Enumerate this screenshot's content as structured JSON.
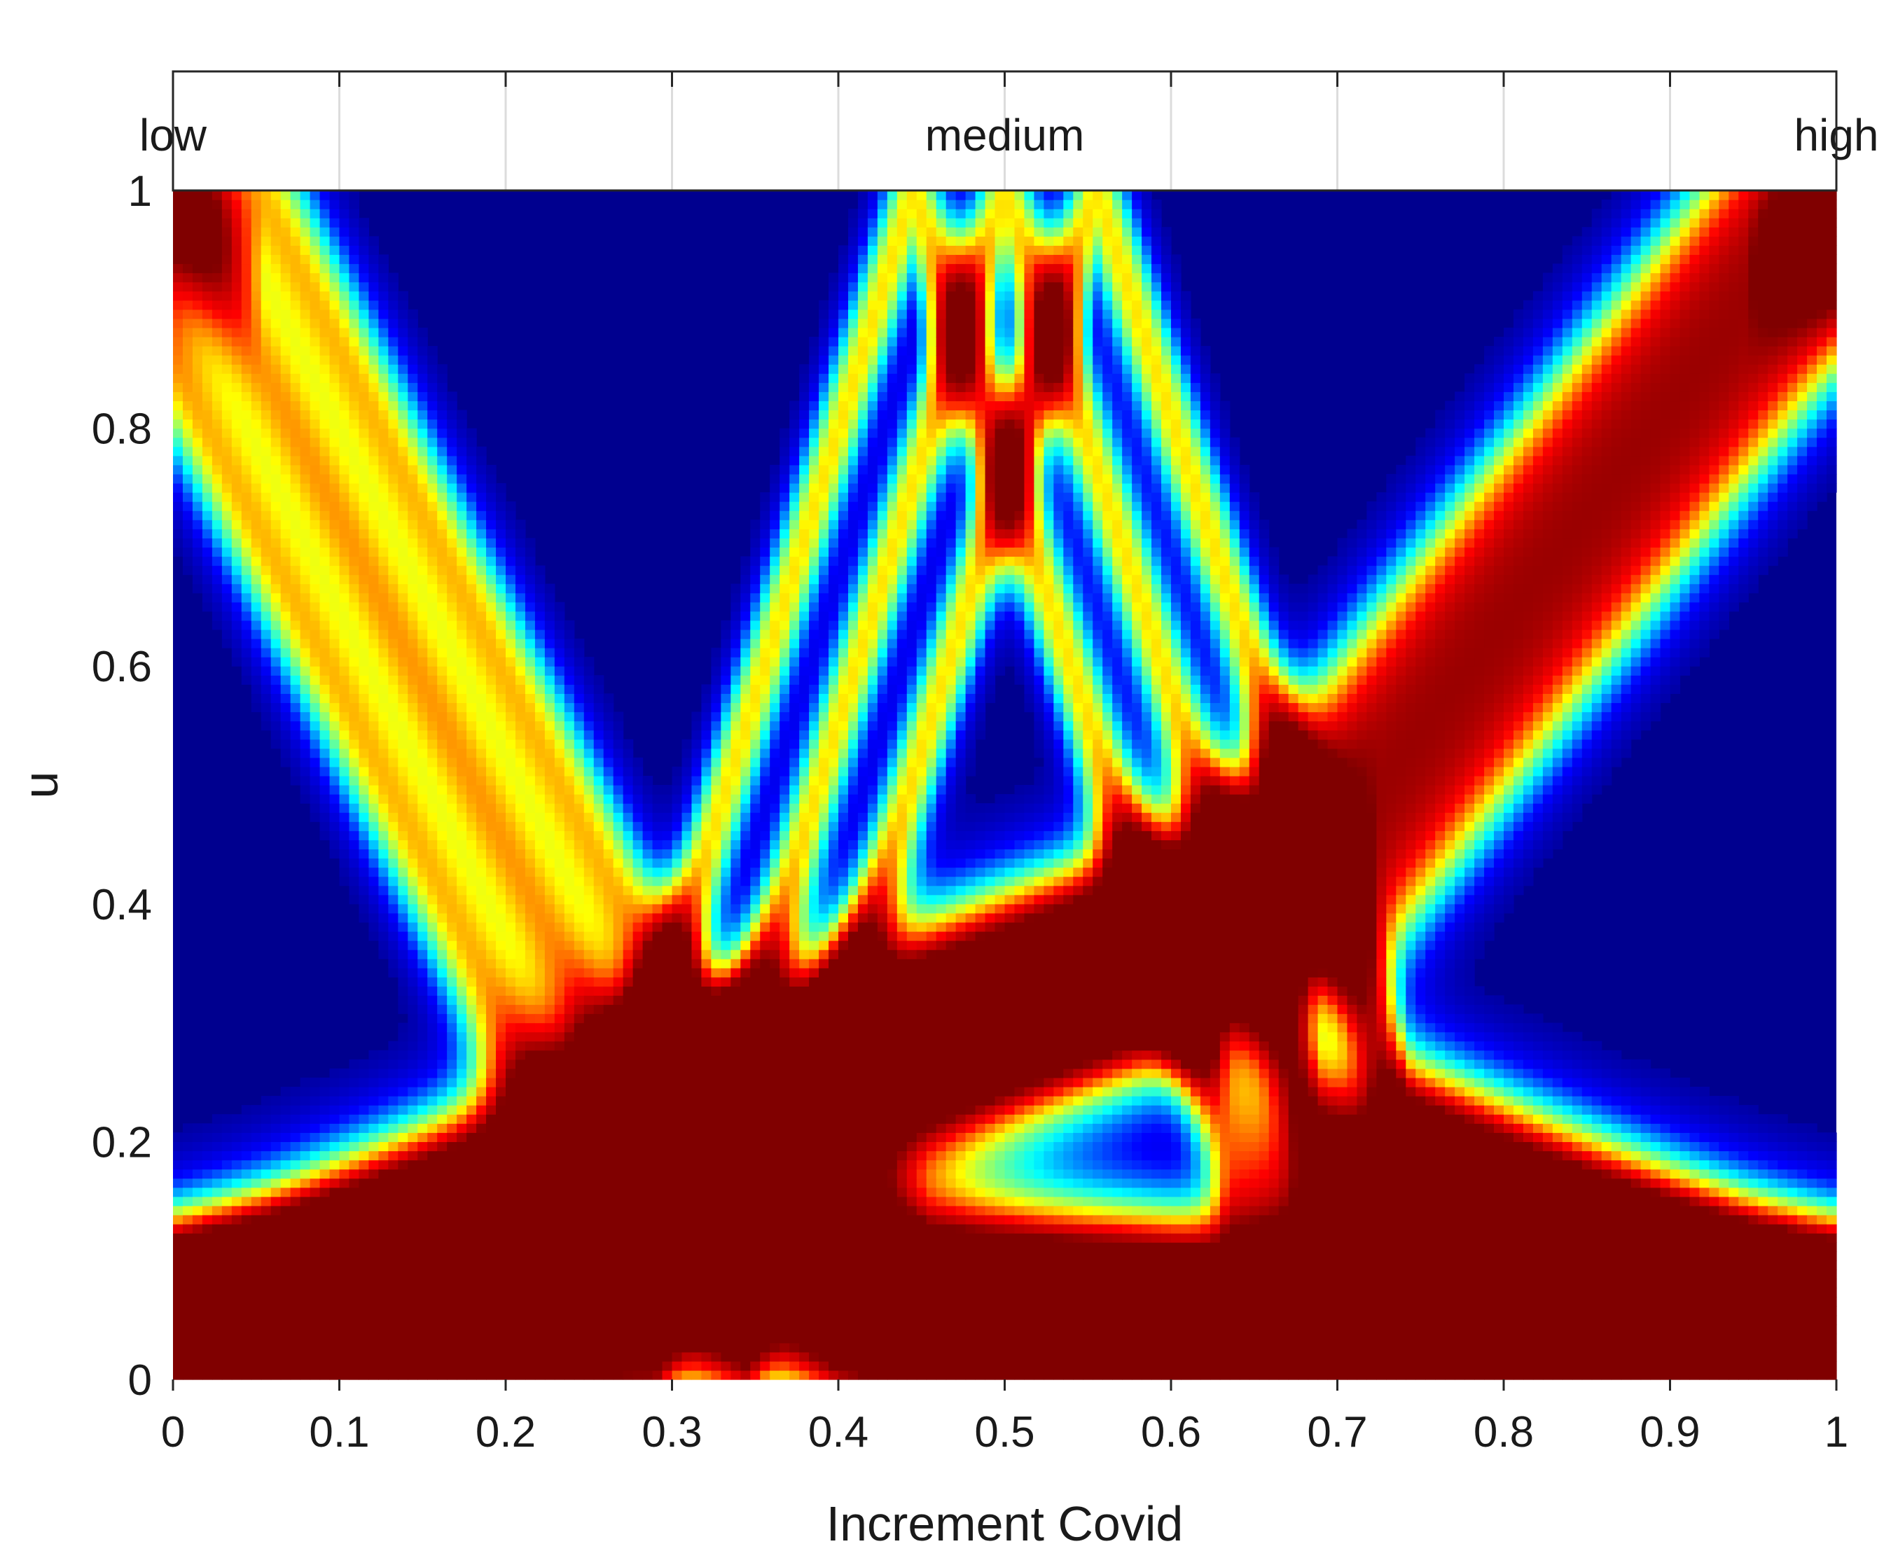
{
  "chart_data": {
    "type": "heatmap",
    "title": "",
    "xlabel": "Increment Covid",
    "ylabel": "u",
    "xlim": [
      0,
      1
    ],
    "ylim": [
      0,
      1
    ],
    "x_ticks": [
      0,
      0.1,
      0.2,
      0.3,
      0.4,
      0.5,
      0.6,
      0.7,
      0.8,
      0.9,
      1
    ],
    "x_tick_labels": [
      "0",
      "0.1",
      "0.2",
      "0.3",
      "0.4",
      "0.5",
      "0.6",
      "0.7",
      "0.8",
      "0.9",
      "1"
    ],
    "y_ticks": [
      0,
      0.2,
      0.4,
      0.6,
      0.8,
      1
    ],
    "y_tick_labels": [
      "0",
      "0.2",
      "0.4",
      "0.6",
      "0.8",
      "1"
    ],
    "top_labels": [
      {
        "x": 0,
        "text": "low"
      },
      {
        "x": 0.5,
        "text": "medium"
      },
      {
        "x": 1,
        "text": "high"
      }
    ],
    "grid": true,
    "colormap": [
      "#00008f",
      "#0000ff",
      "#00ffff",
      "#ffff00",
      "#ff0000",
      "#800000"
    ],
    "membership_functions": [
      {
        "points": [
          [
            0,
            1
          ],
          [
            0.29,
            0.2
          ],
          [
            0.4,
            0.06
          ],
          [
            1,
            0.01
          ]
        ]
      },
      {
        "points": [
          [
            0,
            0.01
          ],
          [
            0.29,
            0.06
          ],
          [
            0.5,
            1
          ],
          [
            0.69,
            0.2
          ],
          [
            1,
            0.01
          ]
        ]
      },
      {
        "points": [
          [
            0,
            0.01
          ],
          [
            0.29,
            0.2
          ],
          [
            0.67,
            0.4
          ],
          [
            1,
            1
          ]
        ]
      }
    ],
    "band_width": 0.13,
    "band_offsets": [
      -0.055,
      0,
      0.055
    ]
  }
}
